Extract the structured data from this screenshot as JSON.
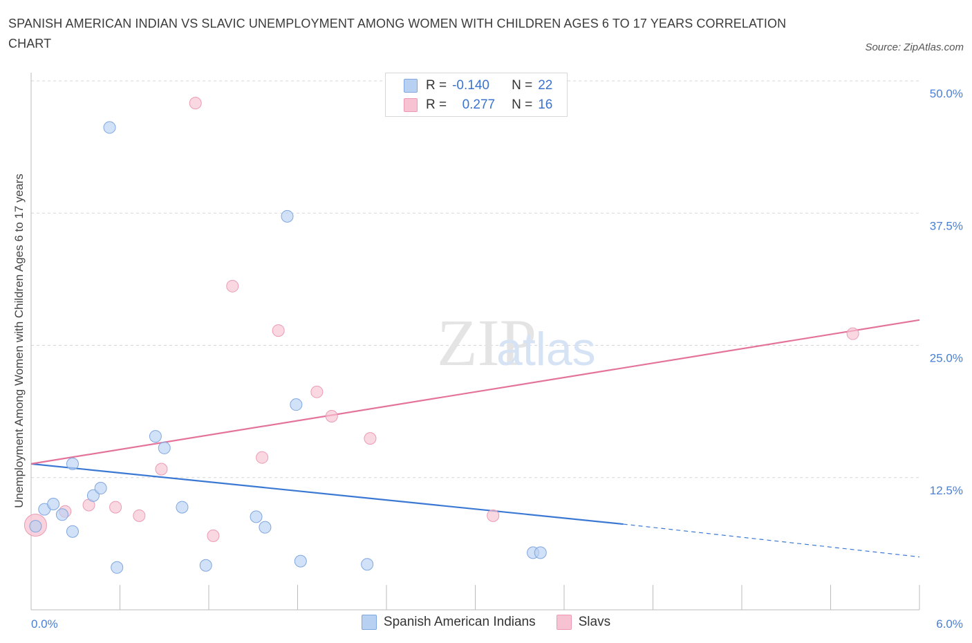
{
  "title": "SPANISH AMERICAN INDIAN VS SLAVIC UNEMPLOYMENT AMONG WOMEN WITH CHILDREN AGES 6 TO 17 YEARS CORRELATION CHART",
  "source": "Source: ZipAtlas.com",
  "watermark": {
    "zip": "ZIP",
    "atlas": "atlas"
  },
  "legend": {
    "rows": [
      {
        "r_label": "R =",
        "r_value": "-0.140",
        "n_label": "N =",
        "n_value": "22"
      },
      {
        "r_label": "R =",
        "r_value": "0.277",
        "n_label": "N =",
        "n_value": "16"
      }
    ]
  },
  "colors": {
    "blue_fill": "#b8d1f3",
    "blue_stroke": "#7fa6e0",
    "blue_line": "#3a78d4",
    "pink_fill": "#f7c3d2",
    "pink_stroke": "#ec9ab3",
    "pink_line": "#e4739b",
    "tick_text": "#4a7fd4",
    "grid": "#d5d5d5"
  },
  "chart_data": {
    "type": "scatter",
    "title": "SPANISH AMERICAN INDIAN VS SLAVIC UNEMPLOYMENT AMONG WOMEN WITH CHILDREN AGES 6 TO 17 YEARS CORRELATION CHART",
    "xlabel": "",
    "ylabel": "Unemployment Among Women with Children Ages 6 to 17 years",
    "xlim": [
      0,
      6
    ],
    "ylim": [
      0,
      50
    ],
    "x_tick_labels": [
      "0.0%",
      "6.0%"
    ],
    "y_ticks": [
      12.5,
      25.0,
      37.5,
      50.0
    ],
    "y_tick_labels": [
      "12.5%",
      "25.0%",
      "37.5%",
      "50.0%"
    ],
    "grid": "horizontal dashed",
    "legend_placement": "top-center and bottom",
    "series": [
      {
        "name": "Spanish American Indians",
        "color": "#b8d1f3",
        "r": -0.14,
        "n": 22,
        "points": [
          [
            0.03,
            7.9
          ],
          [
            0.09,
            9.5
          ],
          [
            0.15,
            10.0
          ],
          [
            0.21,
            9.0
          ],
          [
            0.28,
            7.4
          ],
          [
            0.28,
            13.8
          ],
          [
            0.42,
            10.8
          ],
          [
            0.47,
            11.5
          ],
          [
            0.53,
            45.6
          ],
          [
            0.58,
            4.0
          ],
          [
            0.84,
            16.4
          ],
          [
            0.9,
            15.3
          ],
          [
            1.02,
            9.7
          ],
          [
            1.18,
            4.2
          ],
          [
            1.52,
            8.8
          ],
          [
            1.58,
            7.8
          ],
          [
            1.73,
            37.2
          ],
          [
            1.79,
            19.4
          ],
          [
            1.82,
            4.6
          ],
          [
            2.27,
            4.3
          ],
          [
            3.39,
            5.4
          ],
          [
            3.44,
            5.4
          ]
        ],
        "trend": {
          "x0": 0.0,
          "y0": 13.8,
          "x1_solid": 4.0,
          "y1_solid": 8.1,
          "x1": 6.0,
          "y1": 5.0
        }
      },
      {
        "name": "Slavs",
        "color": "#f7c3d2",
        "r": 0.277,
        "n": 16,
        "points": [
          [
            0.03,
            8.0
          ],
          [
            0.23,
            9.3
          ],
          [
            0.39,
            9.9
          ],
          [
            0.57,
            9.7
          ],
          [
            0.73,
            8.9
          ],
          [
            0.88,
            13.3
          ],
          [
            1.11,
            47.9
          ],
          [
            1.23,
            7.0
          ],
          [
            1.36,
            30.6
          ],
          [
            1.56,
            14.4
          ],
          [
            1.67,
            26.4
          ],
          [
            1.93,
            20.6
          ],
          [
            2.03,
            18.3
          ],
          [
            2.29,
            16.2
          ],
          [
            3.12,
            8.9
          ],
          [
            5.55,
            26.1
          ]
        ],
        "trend": {
          "x0": 0.0,
          "y0": 13.8,
          "x1": 6.0,
          "y1": 27.4
        }
      }
    ]
  }
}
